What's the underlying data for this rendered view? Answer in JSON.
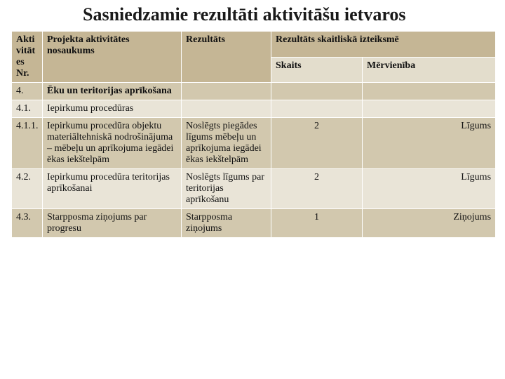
{
  "title": "Sasniedzamie rezultāti aktivitāšu ietvaros",
  "table": {
    "columns": [
      "col-nr",
      "col-name",
      "col-res",
      "col-count",
      "col-unit"
    ],
    "header": {
      "nr": "Akti\nvitāt\nes Nr.",
      "name": "Projekta aktivitātes nosaukums",
      "result": "Rezultāts",
      "result_numeric": "Rezultāts skaitliskā izteiksmē",
      "count": "Skaits",
      "unit": "Mērvienība"
    },
    "rows": [
      {
        "nr": "4.",
        "name_bold": true,
        "name": "Ēku un teritorijas aprīkošana",
        "result": "",
        "count": "",
        "unit": "",
        "style": "altA"
      },
      {
        "nr": "4.1.",
        "name_bold": false,
        "name": "Iepirkumu procedūras",
        "result": "",
        "count": "",
        "unit": "",
        "style": "altB"
      },
      {
        "nr": "4.1.1.",
        "name_bold": false,
        "name": "Iepirkumu procedūra objektu materiāltehniskā nodrošinājuma – mēbeļu un aprīkojuma iegādei  ēkas iekštelpām",
        "result": "Noslēgts piegādes līgums  mēbeļu un aprīkojuma iegādei  ēkas iekštelpām",
        "count": "2",
        "unit": "Līgums",
        "style": "altA"
      },
      {
        "nr": "4.2.",
        "name_bold": false,
        "name": "Iepirkumu procedūra teritorijas aprīkošanai",
        "result": "Noslēgts līgums par teritorijas aprīkošanu",
        "count": "2",
        "unit": "Līgums",
        "style": "altB"
      },
      {
        "nr": "4.3.",
        "name_bold": false,
        "name": "Starpposma ziņojums par progresu",
        "result": "Starpposma ziņojums",
        "count": "1",
        "unit": "Ziņojums",
        "style": "altA"
      }
    ]
  },
  "colors": {
    "header_bg": "#c5b695",
    "subheader_bg": "#e3ddcc",
    "row_altA": "#d2c8ae",
    "row_altB": "#e9e4d7",
    "border": "#ffffff",
    "text": "#111111"
  },
  "fonts": {
    "title_size_pt": 20,
    "body_size_pt": 11,
    "family": "Times New Roman"
  }
}
